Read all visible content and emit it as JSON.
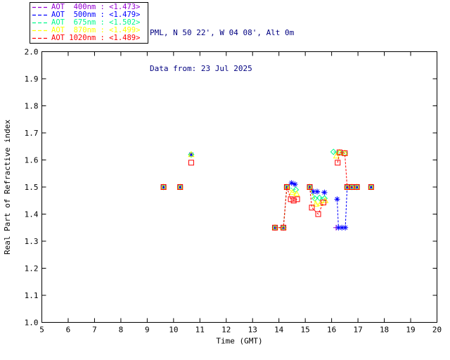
{
  "header": {
    "line1": "PML, N 50 22', W 04 08', Alt 0m",
    "line2": "Data from: 23 Jul 2025",
    "color": "#000080"
  },
  "legend": {
    "rows": [
      {
        "id": "aot-400",
        "label": "AOT  400nm : <1.473>",
        "color": "#9400D3"
      },
      {
        "id": "aot-500",
        "label": "AOT  500nm : <1.479>",
        "color": "#0000FF"
      },
      {
        "id": "aot-675",
        "label": "AOT  675nm : <1.502>",
        "color": "#00FA8C"
      },
      {
        "id": "aot-870",
        "label": "AOT  870nm : <1.499>",
        "color": "#FFFF00"
      },
      {
        "id": "aot-1020",
        "label": "AOT 1020nm : <1.489>",
        "color": "#FF0000"
      }
    ]
  },
  "chart_data": {
    "type": "scatter",
    "title": "",
    "xlabel": "Time (GMT)",
    "ylabel": "Real Part of Refractive index",
    "xlim": [
      5,
      20
    ],
    "ylim": [
      1.0,
      2.0
    ],
    "xticks": [
      "5",
      "6",
      "7",
      "8",
      "9",
      "10",
      "11",
      "12",
      "13",
      "14",
      "15",
      "16",
      "17",
      "18",
      "19",
      "20"
    ],
    "yticks": [
      "1.0",
      "1.1",
      "1.2",
      "1.3",
      "1.4",
      "1.5",
      "1.6",
      "1.7",
      "1.8",
      "1.9",
      "2.0"
    ],
    "grid": false,
    "legend_position": "top-left-outside",
    "axis_color": "#000000",
    "line_style": "dashed",
    "series": [
      {
        "name": "AOT 400nm",
        "wavelength_nm": 400,
        "mean_value": "<1.473>",
        "color": "#9400D3",
        "marker": "plus",
        "points": [
          [
            9.62,
            1.5
          ],
          [
            10.25,
            1.5
          ],
          [
            10.67,
            1.62
          ],
          [
            13.85,
            1.35
          ],
          [
            14.17,
            1.35
          ],
          [
            14.3,
            1.5
          ],
          [
            15.17,
            1.5
          ],
          [
            16.17,
            1.35
          ],
          [
            16.59,
            1.5
          ],
          [
            16.77,
            1.5
          ],
          [
            16.96,
            1.5
          ],
          [
            17.5,
            1.5
          ]
        ],
        "lines": [
          [
            [
              13.85,
              1.35
            ],
            [
              14.17,
              1.35
            ],
            [
              14.3,
              1.5
            ]
          ],
          [
            [
              16.59,
              1.5
            ],
            [
              16.77,
              1.5
            ],
            [
              16.96,
              1.5
            ]
          ]
        ]
      },
      {
        "name": "AOT 500nm",
        "wavelength_nm": 500,
        "mean_value": "<1.479>",
        "color": "#0000FF",
        "marker": "asterisk",
        "points": [
          [
            9.62,
            1.5
          ],
          [
            10.25,
            1.5
          ],
          [
            10.67,
            1.62
          ],
          [
            13.85,
            1.35
          ],
          [
            14.17,
            1.35
          ],
          [
            14.3,
            1.5
          ],
          [
            14.48,
            1.515
          ],
          [
            14.61,
            1.51
          ],
          [
            15.17,
            1.5
          ],
          [
            15.3,
            1.483
          ],
          [
            15.45,
            1.483
          ],
          [
            15.73,
            1.48
          ],
          [
            16.21,
            1.455
          ],
          [
            16.26,
            1.35
          ],
          [
            16.39,
            1.35
          ],
          [
            16.52,
            1.35
          ],
          [
            16.59,
            1.5
          ],
          [
            16.77,
            1.5
          ],
          [
            16.96,
            1.5
          ],
          [
            17.5,
            1.5
          ]
        ],
        "lines": [
          [
            [
              13.85,
              1.35
            ],
            [
              14.17,
              1.35
            ],
            [
              14.3,
              1.5
            ]
          ],
          [
            [
              14.3,
              1.5
            ],
            [
              14.48,
              1.515
            ],
            [
              14.61,
              1.51
            ]
          ],
          [
            [
              15.17,
              1.5
            ],
            [
              15.3,
              1.483
            ],
            [
              15.45,
              1.483
            ],
            [
              15.73,
              1.48
            ]
          ],
          [
            [
              16.21,
              1.455
            ],
            [
              16.26,
              1.35
            ],
            [
              16.39,
              1.35
            ],
            [
              16.52,
              1.35
            ],
            [
              16.59,
              1.5
            ]
          ],
          [
            [
              16.59,
              1.5
            ],
            [
              16.77,
              1.5
            ],
            [
              16.96,
              1.5
            ]
          ]
        ]
      },
      {
        "name": "AOT 675nm",
        "wavelength_nm": 675,
        "mean_value": "<1.502>",
        "color": "#00FA8C",
        "marker": "diamond",
        "points": [
          [
            9.62,
            1.5
          ],
          [
            10.25,
            1.5
          ],
          [
            10.67,
            1.62
          ],
          [
            13.85,
            1.35
          ],
          [
            14.17,
            1.35
          ],
          [
            14.3,
            1.5
          ],
          [
            14.64,
            1.49
          ],
          [
            15.17,
            1.5
          ],
          [
            15.36,
            1.458
          ],
          [
            15.54,
            1.46
          ],
          [
            15.73,
            1.458
          ],
          [
            16.07,
            1.63
          ],
          [
            16.3,
            1.628
          ],
          [
            16.5,
            1.625
          ],
          [
            16.59,
            1.5
          ],
          [
            16.77,
            1.5
          ],
          [
            16.96,
            1.5
          ],
          [
            17.5,
            1.5
          ]
        ],
        "lines": [
          [
            [
              13.85,
              1.35
            ],
            [
              14.17,
              1.35
            ],
            [
              14.3,
              1.5
            ]
          ],
          [
            [
              14.3,
              1.5
            ],
            [
              14.64,
              1.49
            ]
          ],
          [
            [
              15.17,
              1.5
            ],
            [
              15.36,
              1.458
            ],
            [
              15.54,
              1.46
            ],
            [
              15.73,
              1.458
            ]
          ],
          [
            [
              16.07,
              1.63
            ],
            [
              16.3,
              1.628
            ],
            [
              16.5,
              1.625
            ]
          ],
          [
            [
              16.59,
              1.5
            ],
            [
              16.77,
              1.5
            ],
            [
              16.96,
              1.5
            ]
          ]
        ]
      },
      {
        "name": "AOT 870nm",
        "wavelength_nm": 870,
        "mean_value": "<1.499>",
        "color": "#FFFF00",
        "marker": "triangle",
        "points": [
          [
            9.62,
            1.5
          ],
          [
            10.25,
            1.5
          ],
          [
            10.67,
            1.62
          ],
          [
            13.85,
            1.35
          ],
          [
            14.17,
            1.35
          ],
          [
            14.3,
            1.5
          ],
          [
            14.51,
            1.48
          ],
          [
            14.67,
            1.475
          ],
          [
            15.17,
            1.5
          ],
          [
            15.4,
            1.437
          ],
          [
            15.58,
            1.44
          ],
          [
            15.76,
            1.45
          ],
          [
            16.18,
            1.615
          ],
          [
            16.3,
            1.628
          ],
          [
            16.5,
            1.625
          ],
          [
            16.59,
            1.5
          ],
          [
            16.77,
            1.5
          ],
          [
            16.96,
            1.5
          ],
          [
            17.5,
            1.5
          ]
        ],
        "lines": [
          [
            [
              13.85,
              1.35
            ],
            [
              14.17,
              1.35
            ],
            [
              14.3,
              1.5
            ]
          ],
          [
            [
              14.3,
              1.5
            ],
            [
              14.51,
              1.48
            ],
            [
              14.67,
              1.475
            ]
          ],
          [
            [
              15.17,
              1.5
            ],
            [
              15.4,
              1.437
            ],
            [
              15.58,
              1.44
            ],
            [
              15.76,
              1.45
            ]
          ],
          [
            [
              16.59,
              1.5
            ],
            [
              16.77,
              1.5
            ],
            [
              16.96,
              1.5
            ]
          ]
        ]
      },
      {
        "name": "AOT 1020nm",
        "wavelength_nm": 1020,
        "mean_value": "<1.489>",
        "color": "#FF0000",
        "marker": "square",
        "points": [
          [
            9.62,
            1.5
          ],
          [
            10.25,
            1.5
          ],
          [
            10.67,
            1.59
          ],
          [
            13.85,
            1.35
          ],
          [
            14.17,
            1.35
          ],
          [
            14.3,
            1.5
          ],
          [
            14.45,
            1.455
          ],
          [
            14.56,
            1.45
          ],
          [
            14.69,
            1.455
          ],
          [
            15.17,
            1.5
          ],
          [
            15.25,
            1.424
          ],
          [
            15.49,
            1.4
          ],
          [
            15.69,
            1.443
          ],
          [
            16.23,
            1.59
          ],
          [
            16.3,
            1.628
          ],
          [
            16.5,
            1.625
          ],
          [
            16.59,
            1.5
          ],
          [
            16.77,
            1.5
          ],
          [
            16.96,
            1.5
          ],
          [
            17.5,
            1.5
          ]
        ],
        "lines": [
          [
            [
              13.85,
              1.35
            ],
            [
              14.17,
              1.35
            ],
            [
              14.3,
              1.5
            ]
          ],
          [
            [
              14.3,
              1.5
            ],
            [
              14.45,
              1.455
            ],
            [
              14.56,
              1.45
            ],
            [
              14.69,
              1.455
            ]
          ],
          [
            [
              15.17,
              1.5
            ],
            [
              15.25,
              1.424
            ],
            [
              15.49,
              1.4
            ],
            [
              15.69,
              1.443
            ]
          ],
          [
            [
              16.23,
              1.59
            ],
            [
              16.3,
              1.628
            ],
            [
              16.5,
              1.625
            ],
            [
              16.59,
              1.5
            ],
            [
              16.77,
              1.5
            ],
            [
              16.96,
              1.5
            ]
          ]
        ]
      }
    ]
  }
}
